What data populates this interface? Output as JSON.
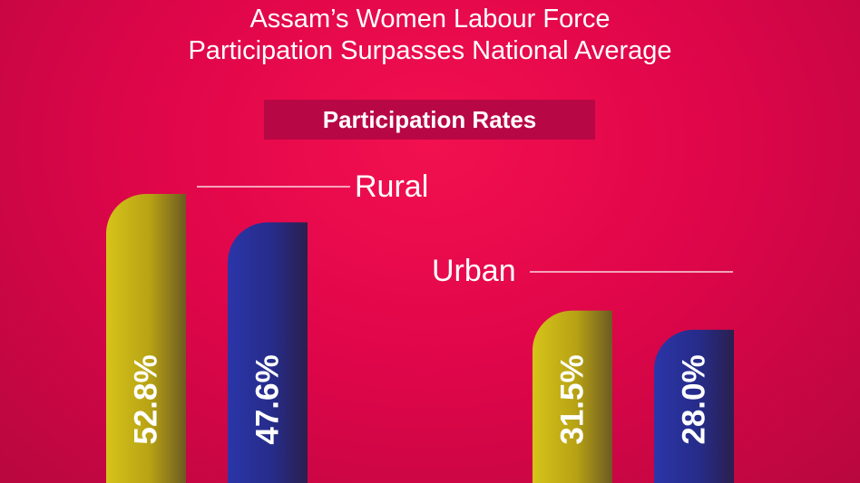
{
  "header": {
    "title_line_1": "Assam’s Women Labour Force",
    "title_line_2": "Participation Surpasses National Average",
    "banner": "Participation Rates"
  },
  "colors": {
    "background": "#e0064a",
    "series_1": "#c8b418",
    "series_2": "#2a2a8e",
    "banner": "#b80745"
  },
  "chart_data": {
    "type": "bar",
    "title": "Participation Rates",
    "categories": [
      "Rural",
      "Urban"
    ],
    "series": [
      {
        "values": [
          52.8,
          31.5
        ],
        "labels": [
          "52.8%",
          "31.5%"
        ],
        "color": "#c8b418"
      },
      {
        "values": [
          47.6,
          28.0
        ],
        "labels": [
          "47.6%",
          "28.0%"
        ],
        "color": "#2a2a8e"
      }
    ],
    "unit": "%",
    "ylim": [
      0,
      52.8
    ],
    "grid": false,
    "legend": "none"
  }
}
